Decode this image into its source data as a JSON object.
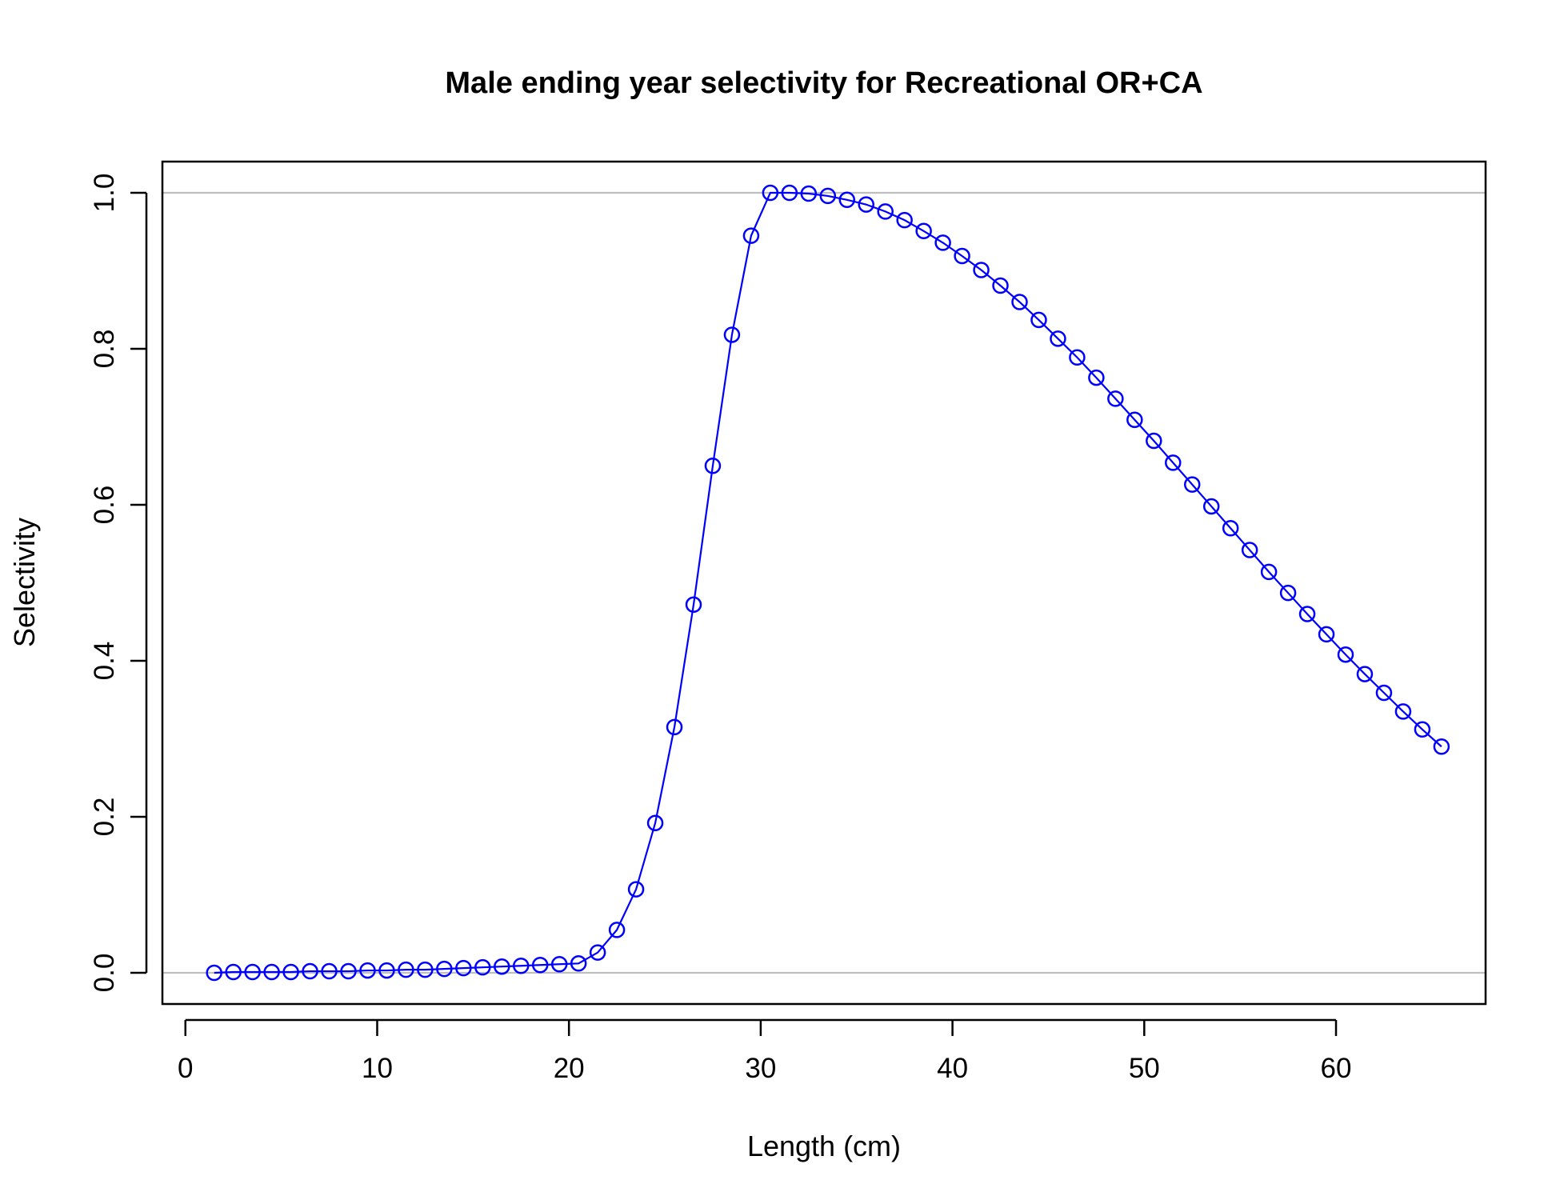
{
  "chart_data": {
    "type": "line",
    "title": "Male ending year selectivity for Recreational OR+CA",
    "xlabel": "Length (cm)",
    "ylabel": "Selectivity",
    "xlim": [
      -1.2,
      67.8
    ],
    "ylim": [
      -0.04,
      1.04
    ],
    "x_ticks": [
      0,
      10,
      20,
      30,
      40,
      50,
      60
    ],
    "y_ticks": [
      0.0,
      0.2,
      0.4,
      0.6,
      0.8,
      1.0
    ],
    "x_tick_labels": [
      "0",
      "10",
      "20",
      "30",
      "40",
      "50",
      "60"
    ],
    "y_tick_labels": [
      "0.0",
      "0.2",
      "0.4",
      "0.6",
      "0.8",
      "1.0"
    ],
    "reference_lines_y": [
      0,
      1
    ],
    "reference_line_color": "#bebebe",
    "grid": false,
    "legend": "none",
    "series": [
      {
        "color": "#0000ff",
        "marker": "open-circle",
        "x": [
          1.5,
          2.5,
          3.5,
          4.5,
          5.5,
          6.5,
          7.5,
          8.5,
          9.5,
          10.5,
          11.5,
          12.5,
          13.5,
          14.5,
          15.5,
          16.5,
          17.5,
          18.5,
          19.5,
          20.5,
          21.5,
          22.5,
          23.5,
          24.5,
          25.5,
          26.5,
          27.5,
          28.5,
          29.5,
          30.5,
          31.5,
          32.5,
          33.5,
          34.5,
          35.5,
          36.5,
          37.5,
          38.5,
          39.5,
          40.5,
          41.5,
          42.5,
          43.5,
          44.5,
          45.5,
          46.5,
          47.5,
          48.5,
          49.5,
          50.5,
          51.5,
          52.5,
          53.5,
          54.5,
          55.5,
          56.5,
          57.5,
          58.5,
          59.5,
          60.5,
          61.5,
          62.5,
          63.5,
          64.5,
          65.5
        ],
        "y": [
          0.0,
          0.001,
          0.001,
          0.001,
          0.001,
          0.002,
          0.002,
          0.002,
          0.003,
          0.003,
          0.004,
          0.004,
          0.005,
          0.006,
          0.007,
          0.008,
          0.009,
          0.01,
          0.011,
          0.012,
          0.026,
          0.055,
          0.107,
          0.192,
          0.315,
          0.472,
          0.65,
          0.818,
          0.945,
          1.0,
          1.0,
          0.999,
          0.996,
          0.991,
          0.985,
          0.976,
          0.965,
          0.951,
          0.936,
          0.919,
          0.901,
          0.881,
          0.86,
          0.837,
          0.813,
          0.789,
          0.763,
          0.736,
          0.709,
          0.682,
          0.654,
          0.626,
          0.598,
          0.57,
          0.542,
          0.514,
          0.487,
          0.46,
          0.434,
          0.408,
          0.383,
          0.359,
          0.335,
          0.312,
          0.29
        ]
      }
    ]
  }
}
